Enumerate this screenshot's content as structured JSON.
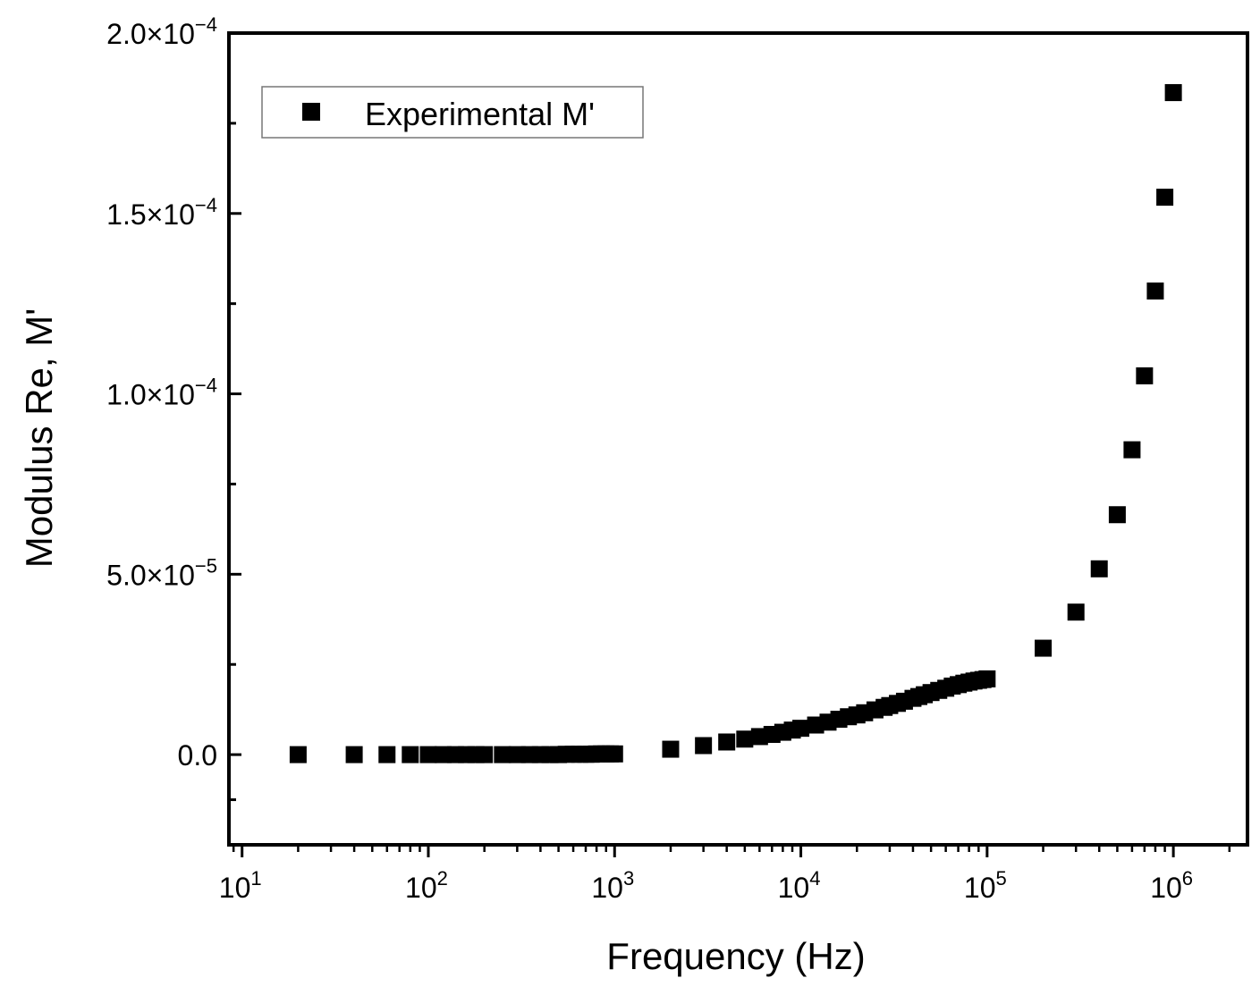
{
  "chart_data": {
    "type": "scatter",
    "title": "",
    "xlabel": "Frequency (Hz)",
    "ylabel": "Modulus Re, M'",
    "x_scale": "log",
    "xlim": [
      8.5,
      2500000
    ],
    "ylim": [
      -2.5e-05,
      0.0002
    ],
    "x_ticks": [
      {
        "value": 10,
        "base": "10",
        "exp": "1"
      },
      {
        "value": 100,
        "base": "10",
        "exp": "2"
      },
      {
        "value": 1000,
        "base": "10",
        "exp": "3"
      },
      {
        "value": 10000,
        "base": "10",
        "exp": "4"
      },
      {
        "value": 100000,
        "base": "10",
        "exp": "5"
      },
      {
        "value": 1000000,
        "base": "10",
        "exp": "6"
      }
    ],
    "y_ticks": [
      {
        "value": 0,
        "mant": "0.0",
        "exp": ""
      },
      {
        "value": 5e-05,
        "mant": "5.0×10",
        "exp": "−5"
      },
      {
        "value": 0.0001,
        "mant": "1.0×10",
        "exp": "−4"
      },
      {
        "value": 0.00015,
        "mant": "1.5×10",
        "exp": "−4"
      },
      {
        "value": 0.0002,
        "mant": "2.0×10",
        "exp": "−4"
      }
    ],
    "legend": {
      "label": "Experimental M'",
      "position": "top-left"
    },
    "series": [
      {
        "name": "Experimental M'",
        "marker": "square",
        "color": "#000000",
        "x": [
          20,
          40,
          60,
          80,
          100,
          120,
          140,
          160,
          180,
          200,
          250,
          300,
          350,
          400,
          450,
          500,
          550,
          600,
          650,
          700,
          750,
          800,
          850,
          900,
          950,
          1000,
          2000,
          3000,
          4000,
          5000,
          6000,
          7000,
          8000,
          9000,
          10000,
          12000,
          14000,
          16000,
          18000,
          20000,
          22000,
          25000,
          28000,
          30000,
          33000,
          36000,
          40000,
          43000,
          46000,
          50000,
          55000,
          60000,
          65000,
          70000,
          75000,
          80000,
          85000,
          90000,
          95000,
          100000,
          200000,
          300000,
          400000,
          500000,
          600000,
          700000,
          800000,
          900000,
          1000000
        ],
        "y": [
          0,
          0,
          0,
          0,
          0,
          0,
          0,
          0,
          0,
          0,
          0,
          0,
          0,
          0,
          0,
          0,
          1e-07,
          1e-07,
          1e-07,
          1e-07,
          1e-07,
          2e-07,
          2e-07,
          2e-07,
          2e-07,
          2e-07,
          1.5e-06,
          2.5e-06,
          3.5e-06,
          4.3e-06,
          5e-06,
          5.6e-06,
          6.2e-06,
          6.8e-06,
          7.3e-06,
          8.2e-06,
          9e-06,
          9.8e-06,
          1.05e-05,
          1.1e-05,
          1.16e-05,
          1.24e-05,
          1.31e-05,
          1.36e-05,
          1.42e-05,
          1.48e-05,
          1.56e-05,
          1.61e-05,
          1.66e-05,
          1.72e-05,
          1.78e-05,
          1.84e-05,
          1.9e-05,
          1.94e-05,
          1.98e-05,
          2.01e-05,
          2.04e-05,
          2.06e-05,
          2.08e-05,
          2.1e-05,
          2.95e-05,
          3.95e-05,
          5.15e-05,
          6.65e-05,
          8.45e-05,
          0.000105,
          0.0001285,
          0.0001545,
          0.0001835
        ]
      }
    ]
  }
}
